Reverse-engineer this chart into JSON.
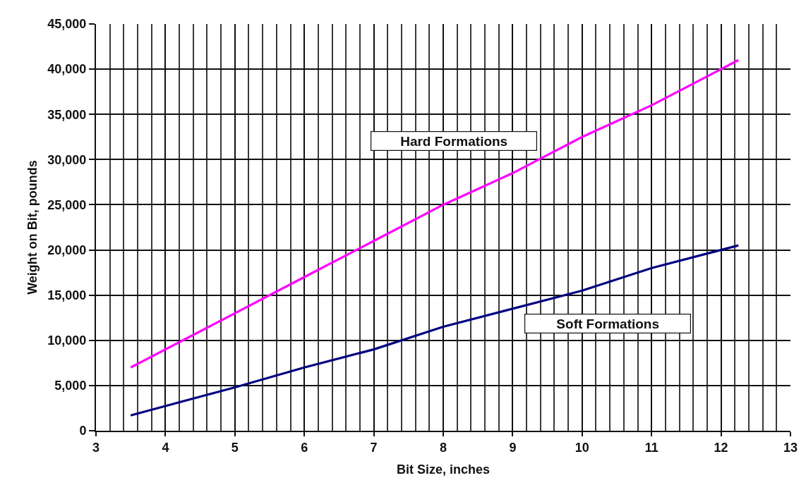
{
  "chart_data": {
    "type": "line",
    "xlabel": "Bit Size, inches",
    "ylabel": "Weight on Bit, pounds",
    "xlim": [
      3,
      13
    ],
    "ylim": [
      0,
      45000
    ],
    "xticks": [
      3,
      {
        "value": 3.2,
        "label": null
      },
      {
        "value": 3.4,
        "label": null
      },
      {
        "value": 3.6,
        "label": null
      },
      {
        "value": 3.8,
        "label": null
      },
      4,
      {
        "value": 4.2,
        "label": null
      },
      {
        "value": 4.4,
        "label": null
      },
      {
        "value": 4.6,
        "label": null
      },
      {
        "value": 4.8,
        "label": null
      },
      5,
      {
        "value": 5.2,
        "label": null
      },
      {
        "value": 5.4,
        "label": null
      },
      {
        "value": 5.6,
        "label": null
      },
      {
        "value": 5.8,
        "label": null
      },
      6,
      {
        "value": 6.2,
        "label": null
      },
      {
        "value": 6.4,
        "label": null
      },
      {
        "value": 6.6,
        "label": null
      },
      {
        "value": 6.8,
        "label": null
      },
      7,
      {
        "value": 7.2,
        "label": null
      },
      {
        "value": 7.4,
        "label": null
      },
      {
        "value": 7.6,
        "label": null
      },
      {
        "value": 7.8,
        "label": null
      },
      8,
      {
        "value": 8.2,
        "label": null
      },
      {
        "value": 8.4,
        "label": null
      },
      {
        "value": 8.6,
        "label": null
      },
      {
        "value": 8.8,
        "label": null
      },
      9,
      {
        "value": 9.2,
        "label": null
      },
      {
        "value": 9.4,
        "label": null
      },
      {
        "value": 9.6,
        "label": null
      },
      {
        "value": 9.8,
        "label": null
      },
      10,
      {
        "value": 10.2,
        "label": null
      },
      {
        "value": 10.4,
        "label": null
      },
      {
        "value": 10.6,
        "label": null
      },
      {
        "value": 10.8,
        "label": null
      },
      11,
      {
        "value": 11.2,
        "label": null
      },
      {
        "value": 11.4,
        "label": null
      },
      {
        "value": 11.6,
        "label": null
      },
      {
        "value": 11.8,
        "label": null
      },
      12,
      {
        "value": 12.2,
        "label": null
      },
      {
        "value": 12.4,
        "label": null
      },
      {
        "value": 12.6,
        "label": null
      },
      {
        "value": 12.8,
        "label": null
      },
      13
    ],
    "yticks": [
      0,
      {
        "value": 5000,
        "label": "5,000"
      },
      {
        "value": 10000,
        "label": "10,000"
      },
      {
        "value": 15000,
        "label": "15,000"
      },
      {
        "value": 20000,
        "label": "20,000"
      },
      {
        "value": 25000,
        "label": "25,000"
      },
      {
        "value": 30000,
        "label": "30,000"
      },
      {
        "value": 35000,
        "label": "35,000"
      },
      {
        "value": 40000,
        "label": "40,000"
      },
      {
        "value": 45000,
        "label": "45,000"
      }
    ],
    "x": [
      3.5,
      5,
      6,
      7,
      8,
      9,
      10,
      11,
      12.25
    ],
    "series": [
      {
        "name": "Hard Formations",
        "color": "#ff00ff",
        "values": [
          7000,
          13000,
          17000,
          21000,
          25000,
          28500,
          32500,
          36000,
          41000
        ]
      },
      {
        "name": "Soft Formations",
        "color": "#000080",
        "values": [
          1700,
          4800,
          7000,
          9000,
          11500,
          13500,
          15500,
          18000,
          20500
        ]
      }
    ],
    "grid": true,
    "legend": false,
    "marker": "none",
    "line_style": "solid"
  }
}
